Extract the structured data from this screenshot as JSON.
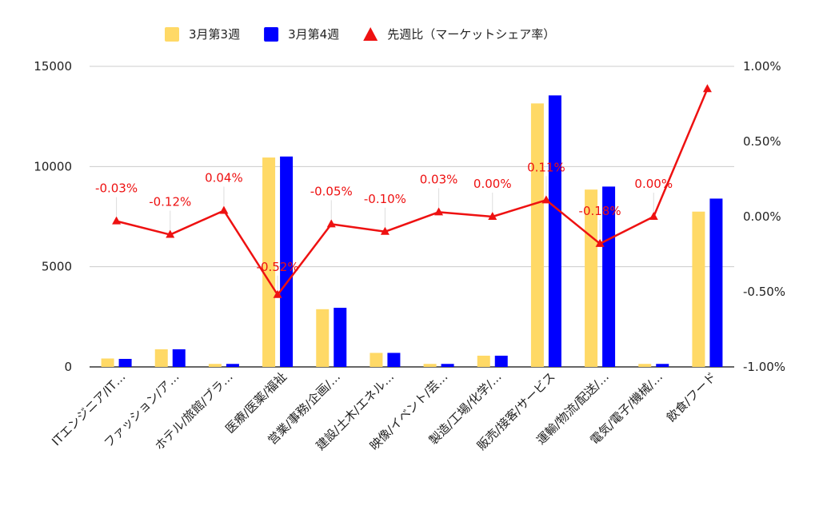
{
  "chart_data": {
    "type": "bar",
    "categories": [
      "ITエンジニア/IT…",
      "ファッション/ア…",
      "ホテル/旅館/ブラ…",
      "医療/医薬/福祉",
      "営業/事務/企画/…",
      "建設/土木/エネル…",
      "映像/イベント/芸…",
      "製造/工場/化学/…",
      "販売/接客/サービス",
      "運輸/物流/配送/…",
      "電気/電子/機械/…",
      "飲食/フード"
    ],
    "series": [
      {
        "name": "3月第3週",
        "kind": "bar",
        "axis": "left",
        "color": "#ffd966",
        "values": [
          420,
          880,
          150,
          10450,
          2880,
          700,
          150,
          560,
          13150,
          8850,
          150,
          7750
        ]
      },
      {
        "name": "3月第4週",
        "kind": "bar",
        "axis": "left",
        "color": "#0000ff",
        "values": [
          400,
          880,
          150,
          10500,
          2950,
          700,
          150,
          560,
          13550,
          9000,
          150,
          8400
        ]
      },
      {
        "name": "先週比（マーケットシェア率）",
        "kind": "line",
        "axis": "right",
        "color": "#ee1111",
        "values": [
          -0.03,
          -0.12,
          0.04,
          -0.52,
          -0.05,
          -0.1,
          0.03,
          0.0,
          0.11,
          -0.18,
          0.0,
          0.85
        ],
        "labels": [
          "-0.03%",
          "-0.12%",
          "0.04%",
          "-0.52%",
          "-0.05%",
          "-0.10%",
          "0.03%",
          "0.00%",
          "0.11%",
          "-0.18%",
          "0.00%",
          null
        ]
      }
    ],
    "ylim_left": [
      0,
      15000
    ],
    "yticks_left": [
      "0",
      "5000",
      "10000",
      "15000"
    ],
    "ylim_right": [
      -1.0,
      1.0
    ],
    "yticks_right": [
      "-1.00%",
      "-0.50%",
      "0.00%",
      "0.50%",
      "1.00%"
    ],
    "grid": true,
    "legend": "top-center",
    "title": "",
    "xlabel": "",
    "ylabel": ""
  }
}
